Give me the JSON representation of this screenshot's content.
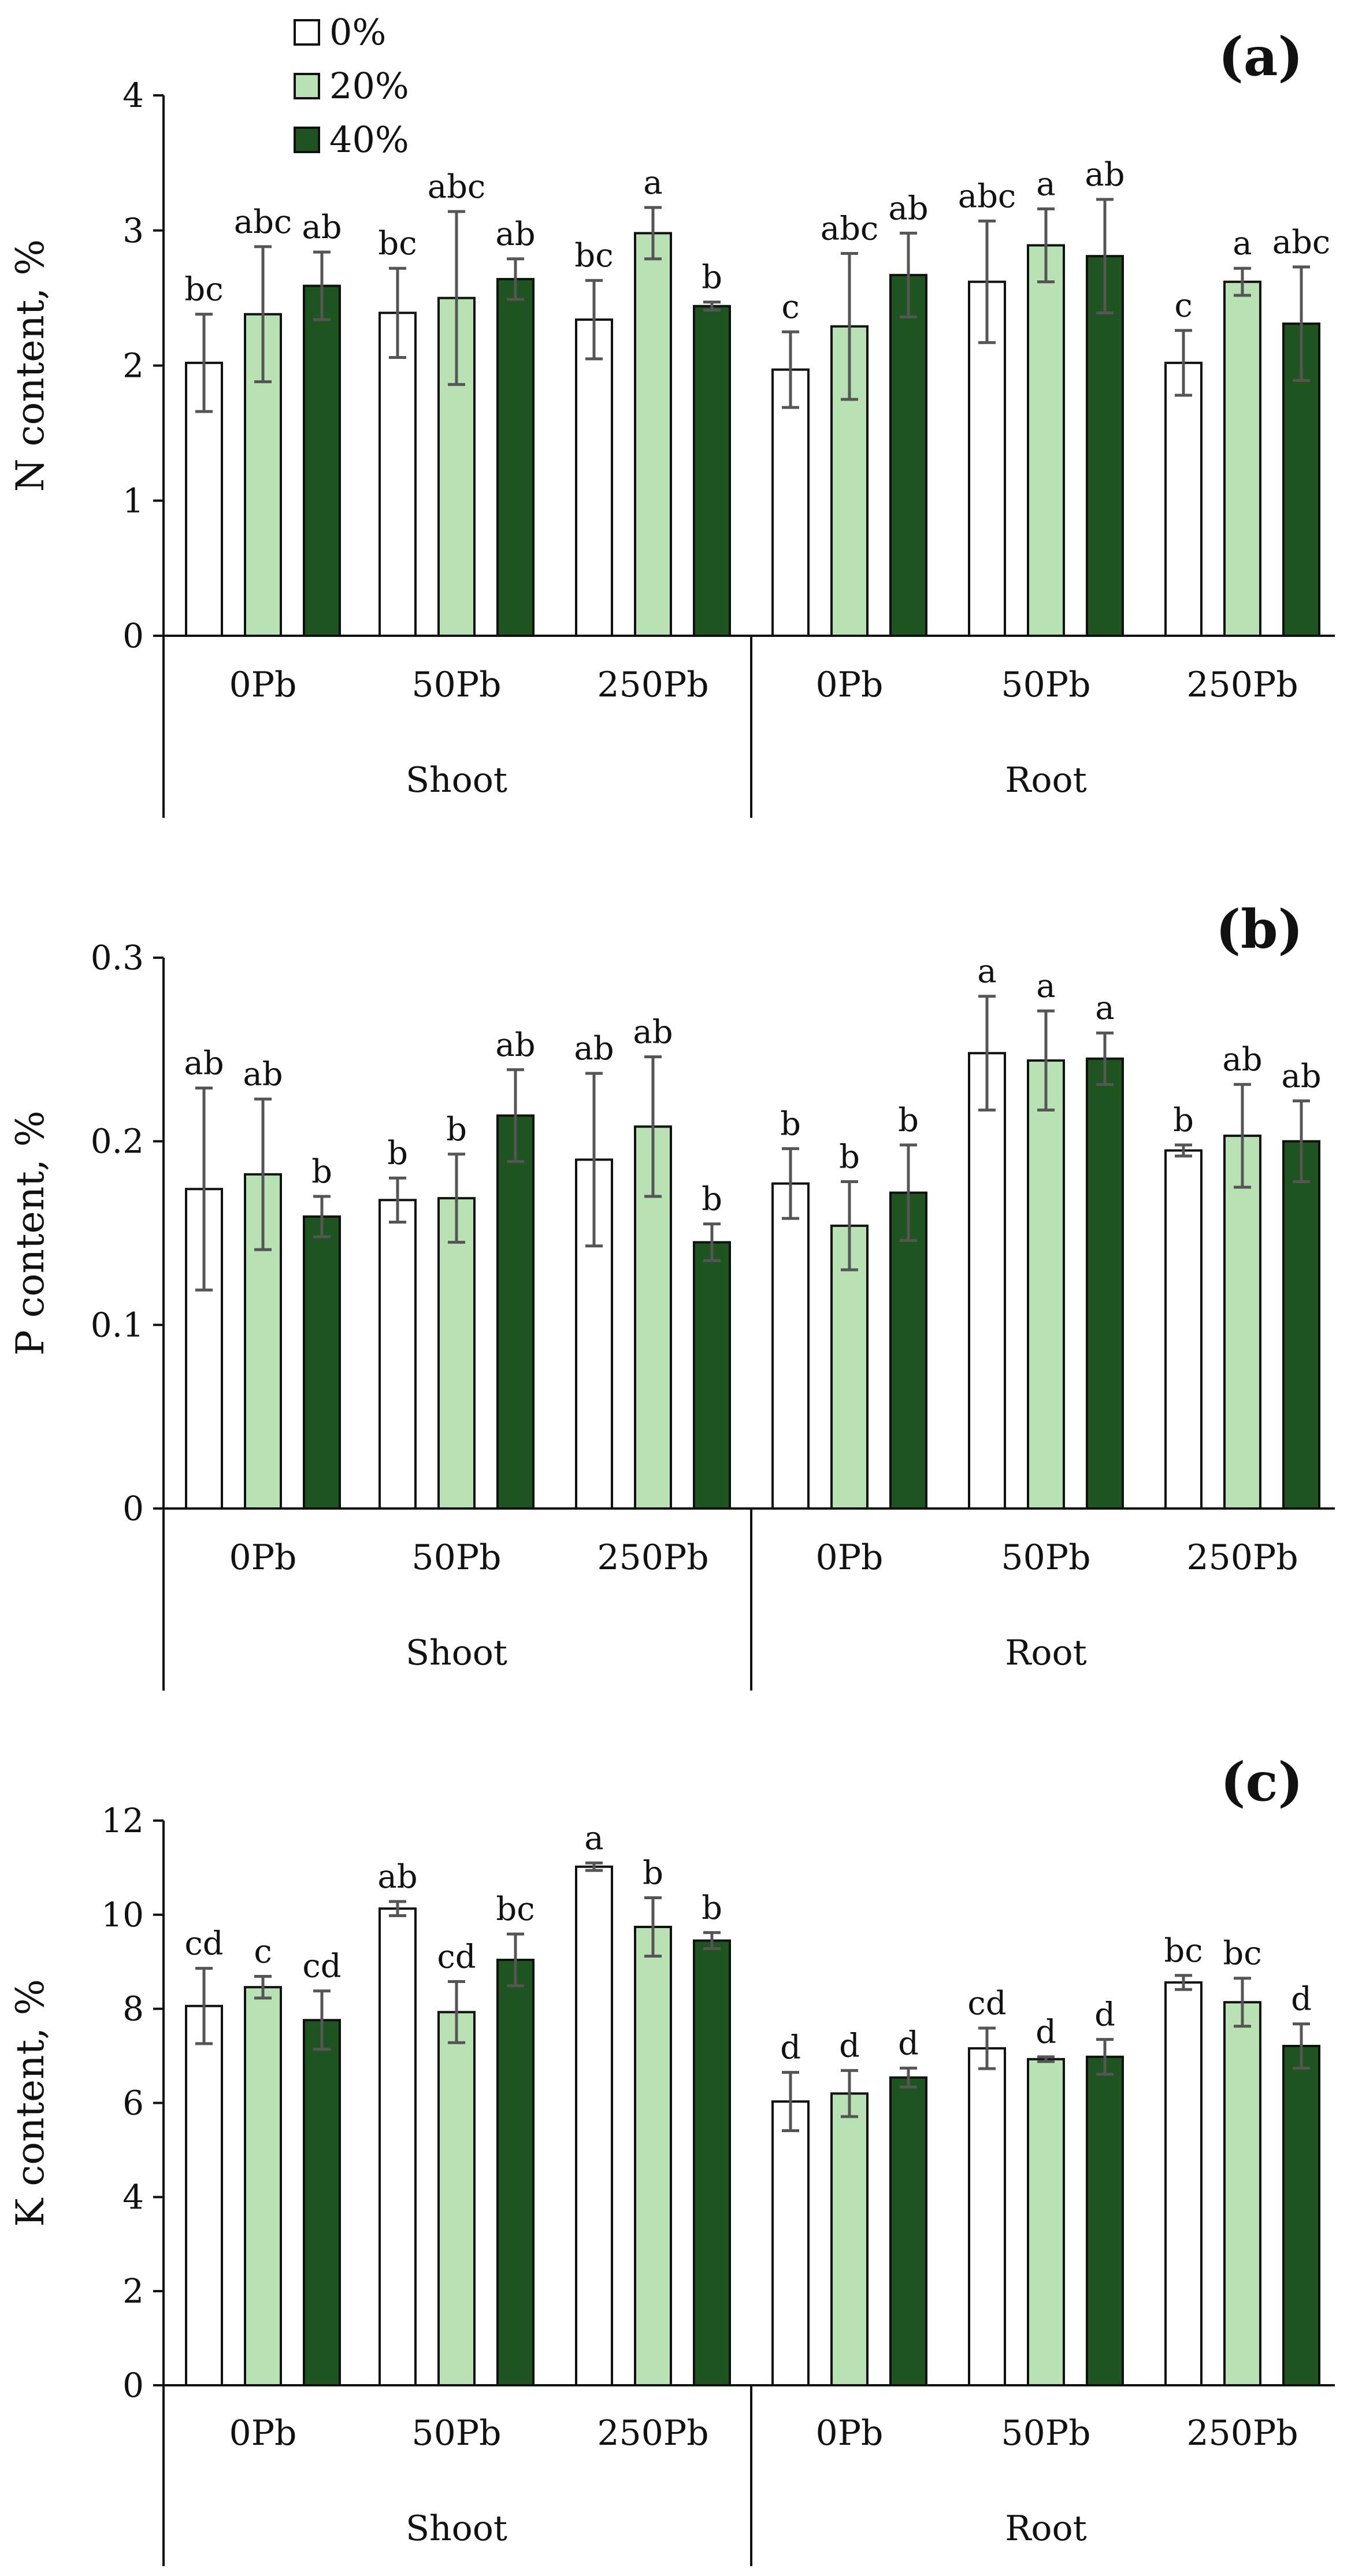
{
  "legend": {
    "items": [
      {
        "label": "0%",
        "color": "#ffffff"
      },
      {
        "label": "20%",
        "color": "#b9e2b4"
      },
      {
        "label": "40%",
        "color": "#1e5420"
      }
    ]
  },
  "chart_data": [
    {
      "type": "bar",
      "panel": "(a)",
      "ylabel": "N content, %",
      "ylim": [
        0,
        4
      ],
      "yticks": [
        "0",
        "1",
        "2",
        "3",
        "4"
      ],
      "groups": [
        "Shoot",
        "Root"
      ],
      "categories": [
        "0Pb",
        "50Pb",
        "250Pb",
        "0Pb",
        "50Pb",
        "250Pb"
      ],
      "series": [
        {
          "name": "0%",
          "color": "#ffffff",
          "values": [
            2.02,
            2.39,
            2.34,
            1.97,
            2.62,
            2.02
          ],
          "errors": [
            0.36,
            0.33,
            0.29,
            0.28,
            0.45,
            0.24
          ],
          "letters": [
            "bc",
            "bc",
            "bc",
            "c",
            "abc",
            "c"
          ]
        },
        {
          "name": "20%",
          "color": "#b9e2b4",
          "values": [
            2.38,
            2.5,
            2.98,
            2.29,
            2.89,
            2.62
          ],
          "errors": [
            0.5,
            0.64,
            0.19,
            0.54,
            0.27,
            0.1
          ],
          "letters": [
            "abc",
            "abc",
            "a",
            "abc",
            "a",
            "a"
          ]
        },
        {
          "name": "40%",
          "color": "#1e5420",
          "values": [
            2.59,
            2.64,
            2.44,
            2.67,
            2.81,
            2.31
          ],
          "errors": [
            0.25,
            0.15,
            0.03,
            0.31,
            0.42,
            0.42
          ],
          "letters": [
            "ab",
            "ab",
            "b",
            "ab",
            "ab",
            "abc"
          ]
        }
      ]
    },
    {
      "type": "bar",
      "panel": "(b)",
      "ylabel": "P content, %",
      "ylim": [
        0,
        0.3
      ],
      "yticks": [
        "0",
        "0.1",
        "0.2",
        "0.3"
      ],
      "groups": [
        "Shoot",
        "Root"
      ],
      "categories": [
        "0Pb",
        "50Pb",
        "250Pb",
        "0Pb",
        "50Pb",
        "250Pb"
      ],
      "series": [
        {
          "name": "0%",
          "color": "#ffffff",
          "values": [
            0.174,
            0.168,
            0.19,
            0.177,
            0.248,
            0.195
          ],
          "errors": [
            0.055,
            0.012,
            0.047,
            0.019,
            0.031,
            0.003
          ],
          "letters": [
            "ab",
            "b",
            "ab",
            "b",
            "a",
            "b"
          ]
        },
        {
          "name": "20%",
          "color": "#b9e2b4",
          "values": [
            0.182,
            0.169,
            0.208,
            0.154,
            0.244,
            0.203
          ],
          "errors": [
            0.041,
            0.024,
            0.038,
            0.024,
            0.027,
            0.028
          ],
          "letters": [
            "ab",
            "b",
            "ab",
            "b",
            "a",
            "ab"
          ]
        },
        {
          "name": "40%",
          "color": "#1e5420",
          "values": [
            0.159,
            0.214,
            0.145,
            0.172,
            0.245,
            0.2
          ],
          "errors": [
            0.011,
            0.025,
            0.01,
            0.026,
            0.014,
            0.022
          ],
          "letters": [
            "b",
            "ab",
            "b",
            "b",
            "a",
            "ab"
          ]
        }
      ]
    },
    {
      "type": "bar",
      "panel": "(c)",
      "ylabel": "K content, %",
      "ylim": [
        0,
        12
      ],
      "yticks": [
        "0",
        "2",
        "4",
        "6",
        "8",
        "10",
        "12"
      ],
      "groups": [
        "Shoot",
        "Root"
      ],
      "categories": [
        "0Pb",
        "50Pb",
        "250Pb",
        "0Pb",
        "50Pb",
        "250Pb"
      ],
      "series": [
        {
          "name": "0%",
          "color": "#ffffff",
          "values": [
            8.06,
            10.13,
            11.02,
            6.03,
            7.16,
            8.56
          ],
          "errors": [
            0.8,
            0.15,
            0.08,
            0.62,
            0.43,
            0.15
          ],
          "letters": [
            "cd",
            "ab",
            "a",
            "d",
            "cd",
            "bc"
          ]
        },
        {
          "name": "20%",
          "color": "#b9e2b4",
          "values": [
            8.46,
            7.93,
            9.74,
            6.2,
            6.93,
            8.14
          ],
          "errors": [
            0.23,
            0.65,
            0.62,
            0.49,
            0.05,
            0.51
          ],
          "letters": [
            "c",
            "cd",
            "b",
            "d",
            "d",
            "bc"
          ]
        },
        {
          "name": "40%",
          "color": "#1e5420",
          "values": [
            7.76,
            9.04,
            9.45,
            6.54,
            6.98,
            7.21
          ],
          "errors": [
            0.62,
            0.55,
            0.17,
            0.2,
            0.37,
            0.47
          ],
          "letters": [
            "cd",
            "bc",
            "b",
            "d",
            "d",
            "d"
          ]
        }
      ]
    }
  ]
}
